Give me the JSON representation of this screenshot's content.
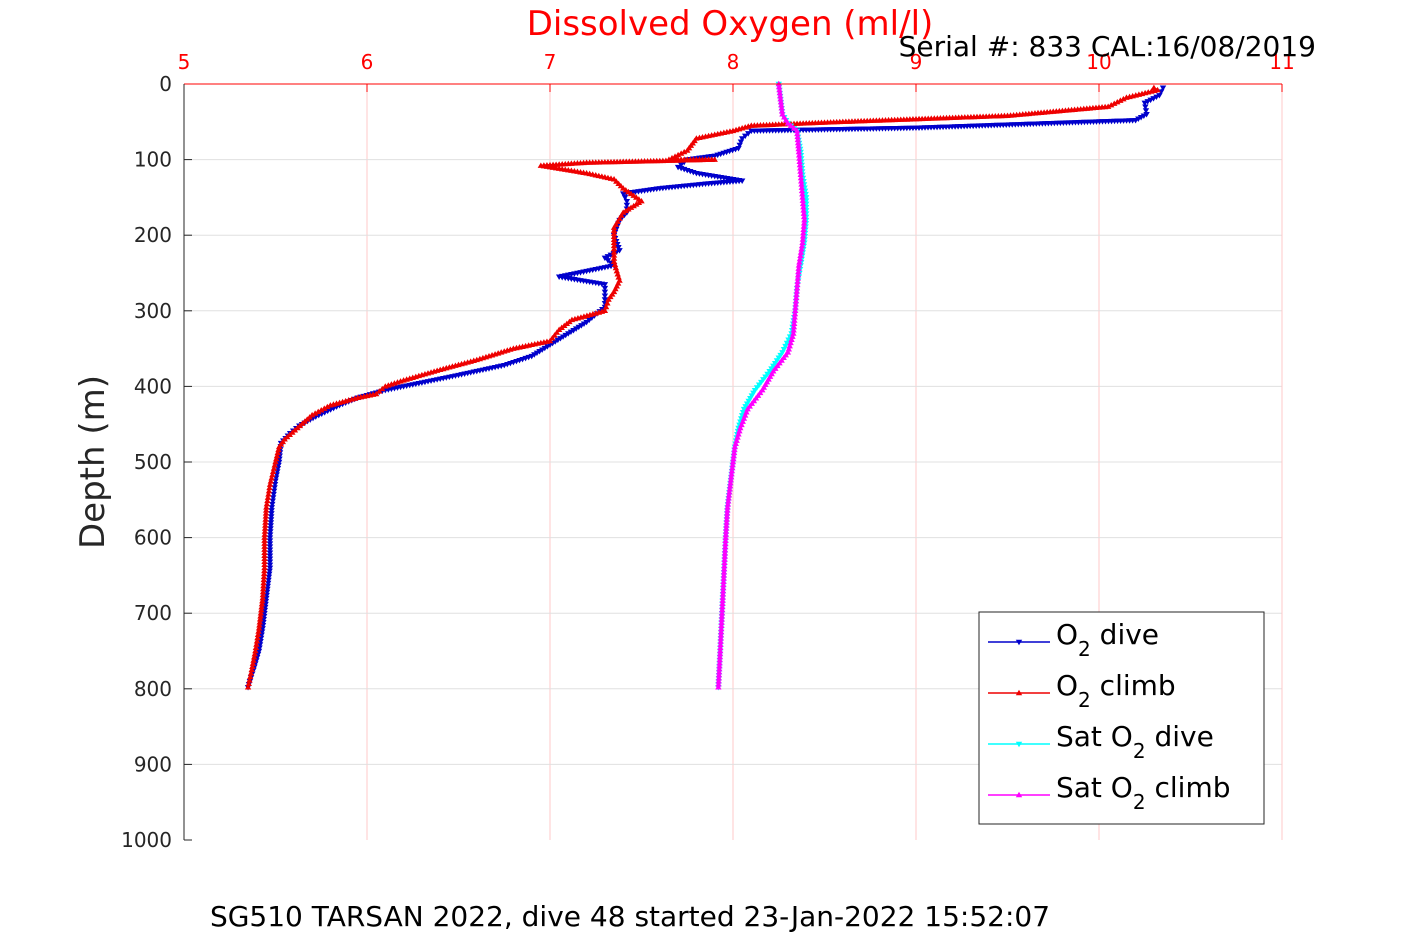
{
  "chart_data": {
    "type": "line",
    "title": "Dissolved Oxygen (ml/l)",
    "annotation": "Serial #: 833  CAL:16/08/2019",
    "ylabel": "Depth (m)",
    "caption": "SG510 TARSAN 2022, dive 48 started 23-Jan-2022 15:52:07",
    "xlim": [
      5,
      11
    ],
    "ylim": [
      0,
      1000
    ],
    "y_reversed": true,
    "x_axis_position": "top",
    "grid": true,
    "x_ticks": [
      "5",
      "6",
      "7",
      "8",
      "9",
      "10",
      "11"
    ],
    "y_ticks": [
      "0",
      "100",
      "200",
      "300",
      "400",
      "500",
      "600",
      "700",
      "800",
      "900",
      "1000"
    ],
    "legend_position": "bottom-right",
    "legend": [
      {
        "prefix": "O",
        "sub": "2",
        "suffix": " dive",
        "color": "#0000cc",
        "marker": "triangle-down"
      },
      {
        "prefix": "O",
        "sub": "2",
        "suffix": " climb",
        "color": "#ee0000",
        "marker": "triangle-up"
      },
      {
        "prefix": "Sat O",
        "sub": "2",
        "suffix": " dive",
        "color": "#00ffff",
        "marker": "triangle-down"
      },
      {
        "prefix": "Sat O",
        "sub": "2",
        "suffix": " climb",
        "color": "#ff00ff",
        "marker": "triangle-up"
      }
    ],
    "series": [
      {
        "name": "O2 dive",
        "color": "#0000cc",
        "marker": "triangle-down",
        "points": [
          [
            10.35,
            5
          ],
          [
            10.33,
            15
          ],
          [
            10.25,
            25
          ],
          [
            10.26,
            40
          ],
          [
            10.2,
            48
          ],
          [
            9.0,
            58
          ],
          [
            8.1,
            62
          ],
          [
            8.05,
            72
          ],
          [
            8.03,
            85
          ],
          [
            7.9,
            95
          ],
          [
            7.75,
            100
          ],
          [
            7.7,
            110
          ],
          [
            7.8,
            118
          ],
          [
            8.05,
            128
          ],
          [
            7.85,
            132
          ],
          [
            7.6,
            138
          ],
          [
            7.4,
            145
          ],
          [
            7.42,
            155
          ],
          [
            7.42,
            170
          ],
          [
            7.38,
            180
          ],
          [
            7.35,
            200
          ],
          [
            7.38,
            220
          ],
          [
            7.3,
            230
          ],
          [
            7.35,
            240
          ],
          [
            7.05,
            255
          ],
          [
            7.3,
            265
          ],
          [
            7.3,
            280
          ],
          [
            7.3,
            295
          ],
          [
            7.2,
            315
          ],
          [
            7.1,
            330
          ],
          [
            7.0,
            345
          ],
          [
            6.9,
            360
          ],
          [
            6.75,
            372
          ],
          [
            6.5,
            385
          ],
          [
            6.3,
            395
          ],
          [
            6.1,
            405
          ],
          [
            5.95,
            415
          ],
          [
            5.85,
            425
          ],
          [
            5.72,
            440
          ],
          [
            5.63,
            452
          ],
          [
            5.58,
            462
          ],
          [
            5.53,
            475
          ],
          [
            5.52,
            500
          ],
          [
            5.5,
            525
          ],
          [
            5.48,
            560
          ],
          [
            5.47,
            600
          ],
          [
            5.47,
            640
          ],
          [
            5.45,
            680
          ],
          [
            5.43,
            720
          ],
          [
            5.41,
            750
          ],
          [
            5.38,
            775
          ],
          [
            5.36,
            790
          ],
          [
            5.35,
            798
          ]
        ]
      },
      {
        "name": "O2 climb",
        "color": "#ee0000",
        "marker": "triangle-up",
        "points": [
          [
            10.3,
            5
          ],
          [
            10.32,
            8
          ],
          [
            10.15,
            18
          ],
          [
            10.05,
            30
          ],
          [
            9.5,
            42
          ],
          [
            8.6,
            50
          ],
          [
            8.1,
            55
          ],
          [
            8.0,
            62
          ],
          [
            7.8,
            72
          ],
          [
            7.75,
            88
          ],
          [
            7.65,
            100
          ],
          [
            7.9,
            100
          ],
          [
            7.2,
            104
          ],
          [
            6.95,
            108
          ],
          [
            7.05,
            112
          ],
          [
            7.2,
            118
          ],
          [
            7.35,
            126
          ],
          [
            7.4,
            138
          ],
          [
            7.5,
            155
          ],
          [
            7.4,
            170
          ],
          [
            7.35,
            190
          ],
          [
            7.35,
            210
          ],
          [
            7.35,
            235
          ],
          [
            7.38,
            260
          ],
          [
            7.35,
            275
          ],
          [
            7.32,
            285
          ],
          [
            7.3,
            300
          ],
          [
            7.12,
            312
          ],
          [
            7.05,
            325
          ],
          [
            7.0,
            340
          ],
          [
            6.8,
            350
          ],
          [
            6.6,
            365
          ],
          [
            6.4,
            378
          ],
          [
            6.2,
            392
          ],
          [
            6.1,
            400
          ],
          [
            6.05,
            410
          ],
          [
            5.95,
            415
          ],
          [
            5.8,
            425
          ],
          [
            5.7,
            438
          ],
          [
            5.62,
            455
          ],
          [
            5.55,
            470
          ],
          [
            5.52,
            480
          ],
          [
            5.5,
            500
          ],
          [
            5.47,
            530
          ],
          [
            5.45,
            560
          ],
          [
            5.44,
            600
          ],
          [
            5.44,
            640
          ],
          [
            5.43,
            680
          ],
          [
            5.41,
            720
          ],
          [
            5.39,
            750
          ],
          [
            5.37,
            775
          ],
          [
            5.35,
            798
          ]
        ]
      },
      {
        "name": "Sat O2 dive",
        "color": "#00ffff",
        "marker": "triangle-down",
        "points": [
          [
            8.25,
            0
          ],
          [
            8.26,
            20
          ],
          [
            8.27,
            40
          ],
          [
            8.3,
            52
          ],
          [
            8.35,
            62
          ],
          [
            8.37,
            90
          ],
          [
            8.38,
            120
          ],
          [
            8.4,
            150
          ],
          [
            8.4,
            180
          ],
          [
            8.39,
            210
          ],
          [
            8.37,
            240
          ],
          [
            8.36,
            255
          ],
          [
            8.35,
            270
          ],
          [
            8.34,
            300
          ],
          [
            8.32,
            330
          ],
          [
            8.27,
            355
          ],
          [
            8.2,
            380
          ],
          [
            8.12,
            405
          ],
          [
            8.06,
            430
          ],
          [
            8.03,
            455
          ],
          [
            8.01,
            480
          ],
          [
            7.99,
            520
          ],
          [
            7.97,
            560
          ],
          [
            7.96,
            600
          ],
          [
            7.95,
            650
          ],
          [
            7.94,
            700
          ],
          [
            7.93,
            750
          ],
          [
            7.92,
            798
          ]
        ]
      },
      {
        "name": "Sat O2 climb",
        "color": "#ff00ff",
        "marker": "triangle-up",
        "points": [
          [
            8.25,
            0
          ],
          [
            8.26,
            20
          ],
          [
            8.27,
            40
          ],
          [
            8.3,
            52
          ],
          [
            8.35,
            62
          ],
          [
            8.36,
            90
          ],
          [
            8.37,
            120
          ],
          [
            8.38,
            150
          ],
          [
            8.39,
            180
          ],
          [
            8.38,
            210
          ],
          [
            8.36,
            240
          ],
          [
            8.35,
            270
          ],
          [
            8.34,
            300
          ],
          [
            8.33,
            330
          ],
          [
            8.3,
            355
          ],
          [
            8.22,
            380
          ],
          [
            8.16,
            405
          ],
          [
            8.08,
            430
          ],
          [
            8.04,
            455
          ],
          [
            8.01,
            480
          ],
          [
            7.99,
            520
          ],
          [
            7.97,
            560
          ],
          [
            7.96,
            600
          ],
          [
            7.95,
            650
          ],
          [
            7.94,
            700
          ],
          [
            7.93,
            750
          ],
          [
            7.92,
            798
          ]
        ]
      }
    ]
  }
}
